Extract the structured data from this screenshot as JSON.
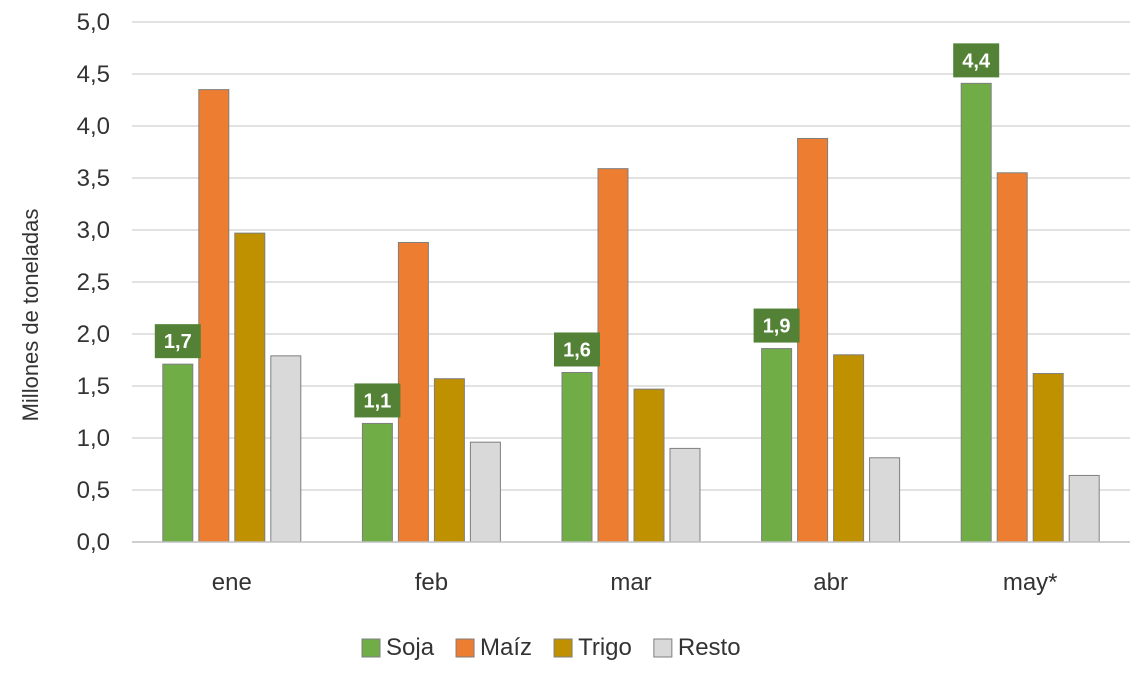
{
  "chart_data": {
    "type": "bar",
    "title": "",
    "xlabel": "",
    "ylabel": "Millones de toneladas",
    "ylim": [
      0,
      5
    ],
    "yticks": [
      "0,0",
      "0,5",
      "1,0",
      "1,5",
      "2,0",
      "2,5",
      "3,0",
      "3,5",
      "4,0",
      "4,5",
      "5,0"
    ],
    "categories": [
      "ene",
      "feb",
      "mar",
      "abr",
      "may*"
    ],
    "series": [
      {
        "name": "Soja",
        "color": "#70AD47",
        "values": [
          1.71,
          1.14,
          1.63,
          1.86,
          4.41
        ],
        "data_labels": [
          "1,7",
          "1,1",
          "1,6",
          "1,9",
          "4,4"
        ]
      },
      {
        "name": "Maíz",
        "color": "#ED7D31",
        "values": [
          4.35,
          2.88,
          3.59,
          3.88,
          3.55
        ]
      },
      {
        "name": "Trigo",
        "color": "#BF9000",
        "values": [
          2.97,
          1.57,
          1.47,
          1.8,
          1.62
        ]
      },
      {
        "name": "Resto",
        "color": "#D9D9D9",
        "values": [
          1.79,
          0.96,
          0.9,
          0.81,
          0.64
        ]
      }
    ],
    "data_label_color": "#538135",
    "grid": true,
    "legend_position": "bottom"
  }
}
